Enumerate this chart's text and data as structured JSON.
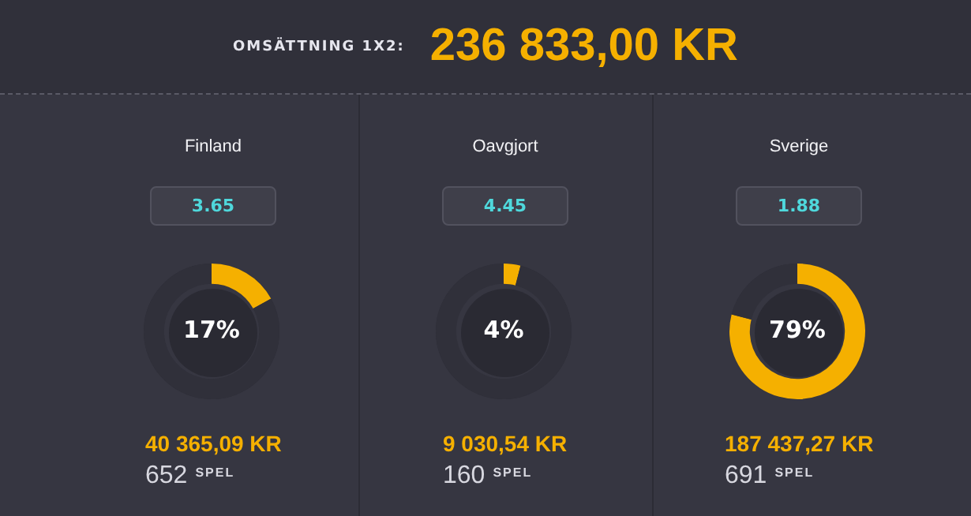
{
  "chart_data": [
    {
      "type": "other",
      "title": "OMSÄTTNING 1X2:",
      "annotations": [
        "236 833,00 KR"
      ]
    },
    {
      "type": "donut",
      "title": "Finland",
      "subtitle": "3.65",
      "categories": [
        null,
        null
      ],
      "values": [
        17,
        83
      ],
      "colors": [
        "#f5b000",
        "#30303a"
      ],
      "value_labels": [
        "17%",
        null
      ],
      "annotations": [
        "40 365,09 KR",
        "652",
        "SPEL"
      ]
    },
    {
      "type": "donut",
      "title": "Oavgjort",
      "subtitle": "4.45",
      "categories": [
        null,
        null
      ],
      "values": [
        4,
        96
      ],
      "colors": [
        "#f5b000",
        "#30303a"
      ],
      "value_labels": [
        "4%",
        null
      ],
      "annotations": [
        "9 030,54 KR",
        "160",
        "SPEL"
      ]
    },
    {
      "type": "donut",
      "title": "Sverige",
      "subtitle": "1.88",
      "categories": [
        null,
        null
      ],
      "values": [
        79,
        21
      ],
      "colors": [
        "#f5b000",
        "#30303a"
      ],
      "value_labels": [
        "79%",
        null
      ],
      "annotations": [
        "187 437,27 KR",
        "691",
        "SPEL"
      ]
    }
  ]
}
